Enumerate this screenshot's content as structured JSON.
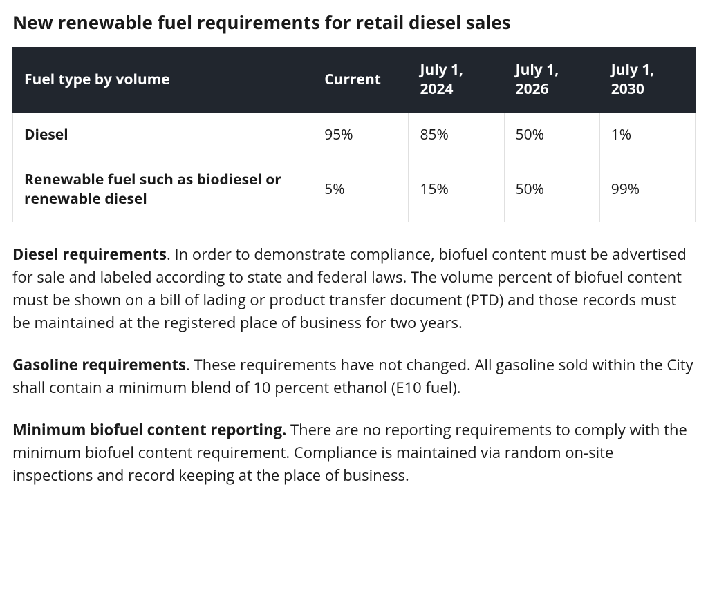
{
  "title": "New renewable fuel requirements for retail diesel sales",
  "table": {
    "type": "table",
    "header_bg": "#21262e",
    "header_text_color": "#ffffff",
    "cell_border_color": "#e0e0e0",
    "background_color": "#ffffff",
    "font_size": 21,
    "columns": [
      {
        "key": "fuel",
        "label": "Fuel type by volume",
        "width_pct": 44,
        "align": "left"
      },
      {
        "key": "current",
        "label": "Current",
        "width_pct": 14,
        "align": "left"
      },
      {
        "key": "d2024",
        "label": "July 1, 2024",
        "width_pct": 14,
        "align": "left"
      },
      {
        "key": "d2026",
        "label": "July 1, 2026",
        "width_pct": 14,
        "align": "left"
      },
      {
        "key": "d2030",
        "label": "July 1, 2030",
        "width_pct": 14,
        "align": "left"
      }
    ],
    "rows": [
      {
        "fuel": "Diesel",
        "current": "95%",
        "d2024": "85%",
        "d2026": "50%",
        "d2030": "1%"
      },
      {
        "fuel": "Renewable fuel such as biodiesel or renewable diesel",
        "current": "5%",
        "d2024": "15%",
        "d2026": "50%",
        "d2030": "99%"
      }
    ]
  },
  "paragraphs": [
    {
      "lead": "Diesel requirements",
      "sep": ". ",
      "body": "In order to demonstrate compliance, biofuel content must be advertised for sale and labeled according to state and federal laws. The volume percent of biofuel content must be shown on a bill of lading or product transfer document (PTD) and those records must be maintained at the registered place of business for two years."
    },
    {
      "lead": "Gasoline requirements",
      "sep": ". ",
      "body": "These requirements have not changed. All gasoline sold within the City shall contain a minimum blend of 10 percent ethanol (E10 fuel)."
    },
    {
      "lead": "Minimum biofuel content reporting.",
      "sep": " ",
      "body": "There are no reporting requirements to comply with the minimum biofuel content requirement. Compliance is maintained via random on-site inspections and record keeping at the place of business."
    }
  ],
  "colors": {
    "page_bg": "#ffffff",
    "text": "#1a1a1a"
  }
}
